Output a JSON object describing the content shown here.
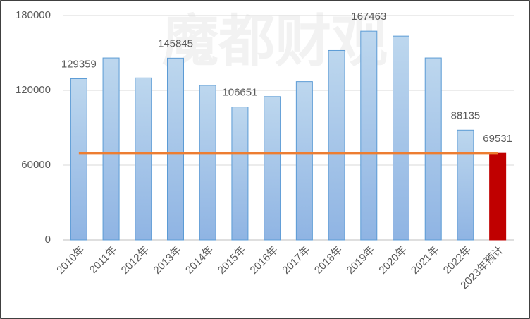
{
  "chart_data": {
    "type": "bar",
    "watermark": "魔都财观",
    "categories": [
      "2010年",
      "2011年",
      "2012年",
      "2013年",
      "2014年",
      "2015年",
      "2016年",
      "2017年",
      "2018年",
      "2019年",
      "2020年",
      "2021年",
      "2022年",
      "2023年预计"
    ],
    "values": [
      129359,
      146000,
      130000,
      145845,
      124000,
      106651,
      115000,
      127000,
      152000,
      167463,
      163500,
      146000,
      88135,
      69531
    ],
    "value_labels": [
      "129359",
      null,
      null,
      "145845",
      null,
      "106651",
      null,
      null,
      null,
      "167463",
      null,
      null,
      "88135",
      "69531"
    ],
    "colors": [
      "#9dc3e6",
      "#9dc3e6",
      "#9dc3e6",
      "#9dc3e6",
      "#9dc3e6",
      "#9dc3e6",
      "#9dc3e6",
      "#9dc3e6",
      "#9dc3e6",
      "#9dc3e6",
      "#9dc3e6",
      "#9dc3e6",
      "#9dc3e6",
      "#c00000"
    ],
    "reference_line_color": "#ed7d31",
    "ylim": [
      0,
      180000
    ],
    "yticks": [
      0,
      60000,
      120000,
      180000
    ],
    "grid": true
  }
}
